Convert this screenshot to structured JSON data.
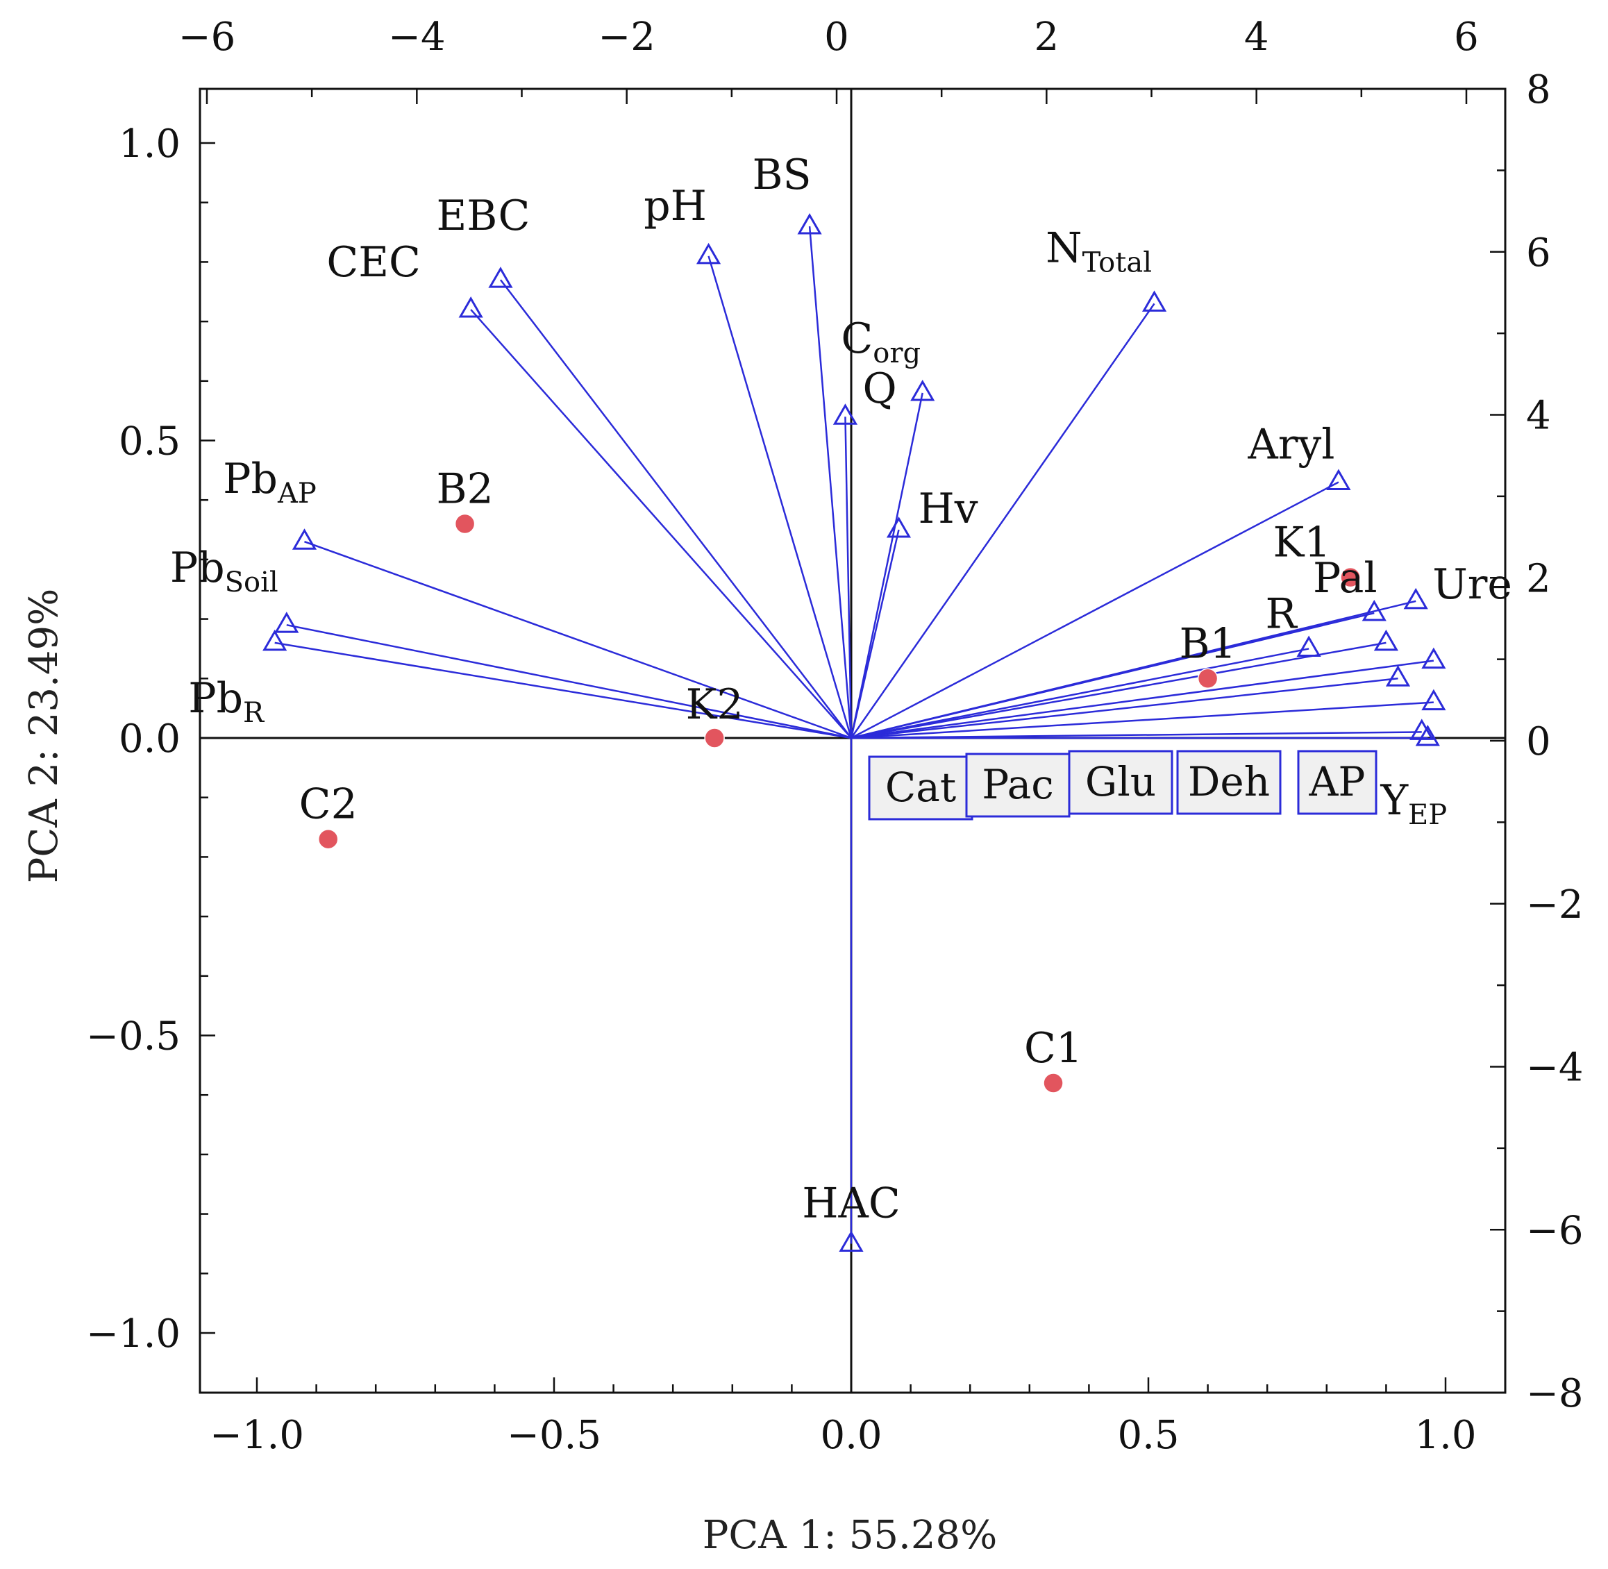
{
  "chart_data": {
    "type": "scatter",
    "subtype": "pca-biplot",
    "xlabel": "PCA 1: 55.28%",
    "ylabel": "PCA 2: 23.49%",
    "xlim": [
      -1.1,
      1.1
    ],
    "ylim": [
      -1.1,
      1.1
    ],
    "x_ticks": [
      "−1.0",
      "−0.5",
      "0.0",
      "0.5",
      "1.0"
    ],
    "y_ticks": [
      "1.0",
      "0.5",
      "0.0",
      "−0.5",
      "−1.0"
    ],
    "top_ticks": [
      "−6",
      "−4",
      "−2",
      "0",
      "2",
      "4",
      "6"
    ],
    "right_ticks": [
      "8",
      "6",
      "4",
      "2",
      "0",
      "−2",
      "−4",
      "−6",
      "−8"
    ],
    "colors": {
      "vector": "#2b2bd9",
      "case": "#e2555e",
      "axis": "#111111"
    },
    "variables": [
      {
        "name": "Pb",
        "sub": "AP",
        "x": -0.92,
        "y": 0.33
      },
      {
        "name": "Pb",
        "sub": "Soil",
        "x": -0.95,
        "y": 0.19
      },
      {
        "name": "Pb",
        "sub": "R",
        "x": -0.97,
        "y": 0.16
      },
      {
        "name": "CEC",
        "sub": "",
        "x": -0.64,
        "y": 0.72
      },
      {
        "name": "EBC",
        "sub": "",
        "x": -0.59,
        "y": 0.77
      },
      {
        "name": "pH",
        "sub": "",
        "x": -0.24,
        "y": 0.81
      },
      {
        "name": "BS",
        "sub": "",
        "x": -0.07,
        "y": 0.86
      },
      {
        "name": "Q",
        "sub": "",
        "x": -0.01,
        "y": 0.54
      },
      {
        "name": "C",
        "sub": "org",
        "x": 0.12,
        "y": 0.58
      },
      {
        "name": "Hv",
        "sub": "",
        "x": 0.08,
        "y": 0.35
      },
      {
        "name": "N",
        "sub": "Total",
        "x": 0.51,
        "y": 0.73
      },
      {
        "name": "Aryl",
        "sub": "",
        "x": 0.82,
        "y": 0.43
      },
      {
        "name": "Ure",
        "sub": "",
        "x": 0.95,
        "y": 0.23
      },
      {
        "name": "Pal",
        "sub": "",
        "x": 0.88,
        "y": 0.21
      },
      {
        "name": "R",
        "sub": "",
        "x": 0.77,
        "y": 0.15
      },
      {
        "name": "Cat",
        "sub": "",
        "x": 0.9,
        "y": 0.16
      },
      {
        "name": "Pac",
        "sub": "",
        "x": 0.98,
        "y": 0.13
      },
      {
        "name": "Glu",
        "sub": "",
        "x": 0.92,
        "y": 0.1
      },
      {
        "name": "Deh",
        "sub": "",
        "x": 0.98,
        "y": 0.06
      },
      {
        "name": "AP",
        "sub": "",
        "x": 0.96,
        "y": 0.01
      },
      {
        "name": "Y",
        "sub": "EP",
        "x": 0.97,
        "y": 0.0
      },
      {
        "name": "HAC",
        "sub": "",
        "x": 0.0,
        "y": -0.85
      }
    ],
    "cases": [
      {
        "name": "B2",
        "x": -0.65,
        "y": 0.36
      },
      {
        "name": "K2",
        "x": -0.23,
        "y": 0.0
      },
      {
        "name": "C2",
        "x": -0.88,
        "y": -0.17
      },
      {
        "name": "B1",
        "x": 0.6,
        "y": 0.1
      },
      {
        "name": "K1",
        "x": 0.84,
        "y": 0.27
      },
      {
        "name": "C1",
        "x": 0.34,
        "y": -0.58
      }
    ]
  }
}
